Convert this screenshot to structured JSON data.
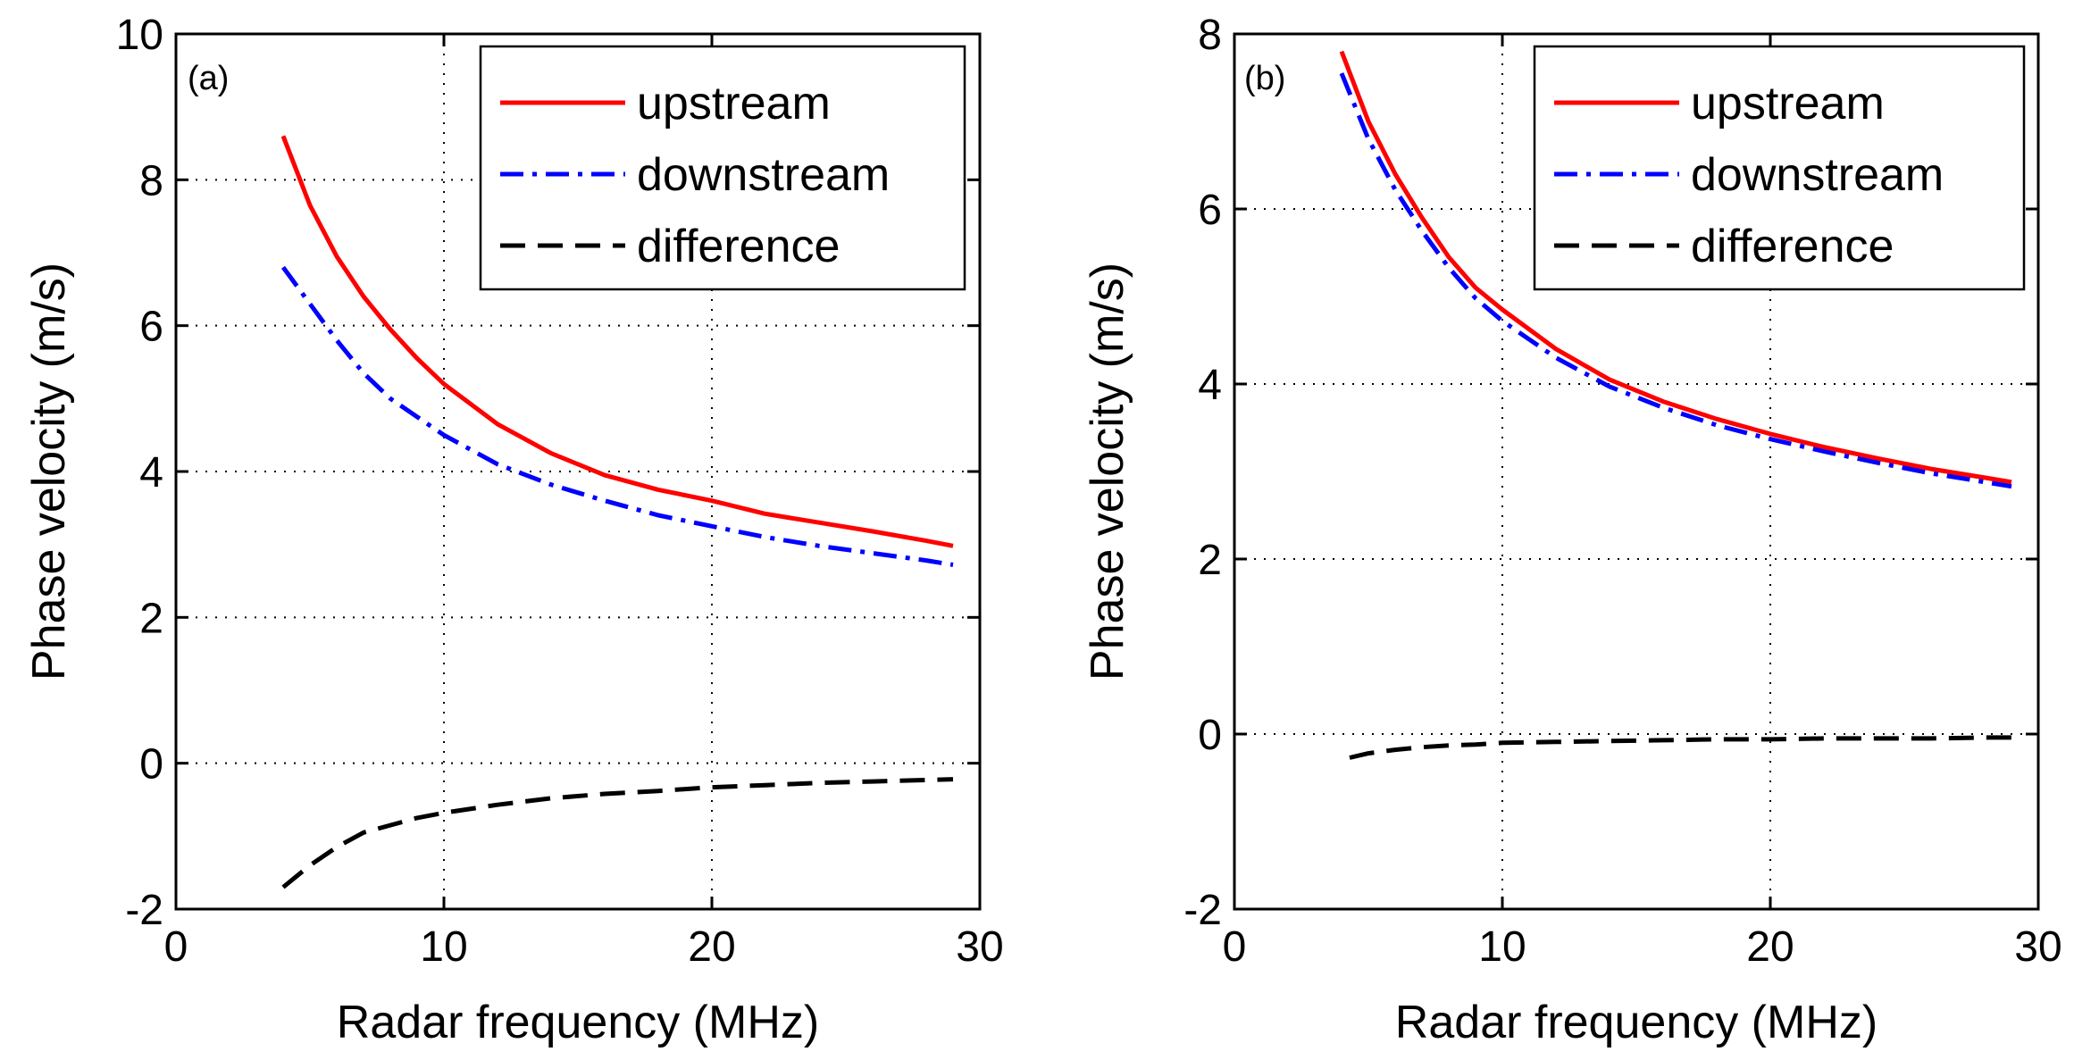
{
  "chart_data": [
    {
      "type": "line",
      "panel_label": "(a)",
      "xlabel": "Radar frequency (MHz)",
      "ylabel": "Phase velocity (m/s)",
      "xlim": [
        0,
        30
      ],
      "ylim": [
        -2,
        10
      ],
      "xticks": [
        0,
        10,
        20,
        30
      ],
      "yticks": [
        -2,
        0,
        2,
        4,
        6,
        8,
        10
      ],
      "grid": true,
      "legend_position": "top-right",
      "series": [
        {
          "name": "upstream",
          "color": "#ff0000",
          "style": "solid",
          "x": [
            4,
            5,
            6,
            7,
            8,
            9,
            10,
            12,
            14,
            16,
            18,
            20,
            22,
            24,
            26,
            28,
            29
          ],
          "y": [
            8.6,
            7.65,
            6.95,
            6.4,
            5.95,
            5.55,
            5.2,
            4.65,
            4.25,
            3.95,
            3.75,
            3.6,
            3.42,
            3.3,
            3.18,
            3.05,
            2.98
          ]
        },
        {
          "name": "downstream",
          "color": "#0000ff",
          "style": "dashdot",
          "x": [
            4,
            5,
            6,
            7,
            8,
            9,
            10,
            12,
            14,
            16,
            18,
            20,
            22,
            24,
            26,
            28,
            29
          ],
          "y": [
            6.8,
            6.3,
            5.8,
            5.35,
            5.0,
            4.75,
            4.5,
            4.1,
            3.82,
            3.6,
            3.4,
            3.25,
            3.1,
            2.98,
            2.88,
            2.78,
            2.72
          ]
        },
        {
          "name": "difference",
          "color": "#000000",
          "style": "dashed",
          "x": [
            4,
            5,
            6,
            7,
            8,
            9,
            10,
            12,
            14,
            16,
            18,
            20,
            22,
            24,
            26,
            28,
            29
          ],
          "y": [
            -1.7,
            -1.4,
            -1.15,
            -0.95,
            -0.85,
            -0.75,
            -0.68,
            -0.57,
            -0.48,
            -0.42,
            -0.38,
            -0.33,
            -0.3,
            -0.27,
            -0.25,
            -0.23,
            -0.22
          ]
        }
      ]
    },
    {
      "type": "line",
      "panel_label": "(b)",
      "xlabel": "Radar frequency (MHz)",
      "ylabel": "Phase velocity (m/s)",
      "xlim": [
        0,
        30
      ],
      "ylim": [
        -2,
        8
      ],
      "xticks": [
        0,
        10,
        20,
        30
      ],
      "yticks": [
        -2,
        0,
        2,
        4,
        6,
        8
      ],
      "grid": true,
      "legend_position": "top-right",
      "series": [
        {
          "name": "upstream",
          "color": "#ff0000",
          "style": "solid",
          "x": [
            4,
            5,
            6,
            7,
            8,
            9,
            10,
            12,
            14,
            16,
            18,
            20,
            22,
            24,
            26,
            28,
            29
          ],
          "y": [
            7.8,
            7.0,
            6.4,
            5.9,
            5.45,
            5.1,
            4.85,
            4.4,
            4.05,
            3.8,
            3.6,
            3.43,
            3.28,
            3.15,
            3.03,
            2.93,
            2.88
          ]
        },
        {
          "name": "downstream",
          "color": "#0000ff",
          "style": "dashdot",
          "x": [
            4,
            5,
            6,
            7,
            8,
            9,
            10,
            12,
            14,
            16,
            18,
            20,
            22,
            24,
            26,
            28,
            29
          ],
          "y": [
            7.55,
            6.8,
            6.22,
            5.75,
            5.33,
            4.98,
            4.72,
            4.3,
            3.97,
            3.73,
            3.53,
            3.37,
            3.23,
            3.1,
            2.98,
            2.88,
            2.83
          ]
        },
        {
          "name": "difference",
          "color": "#000000",
          "style": "dashed",
          "x": [
            4.3,
            5,
            6,
            7,
            8,
            9,
            10,
            12,
            14,
            16,
            18,
            20,
            22,
            24,
            26,
            28,
            29
          ],
          "y": [
            -0.27,
            -0.22,
            -0.18,
            -0.15,
            -0.13,
            -0.12,
            -0.1,
            -0.09,
            -0.08,
            -0.07,
            -0.06,
            -0.06,
            -0.05,
            -0.05,
            -0.05,
            -0.04,
            -0.04
          ]
        }
      ]
    }
  ]
}
